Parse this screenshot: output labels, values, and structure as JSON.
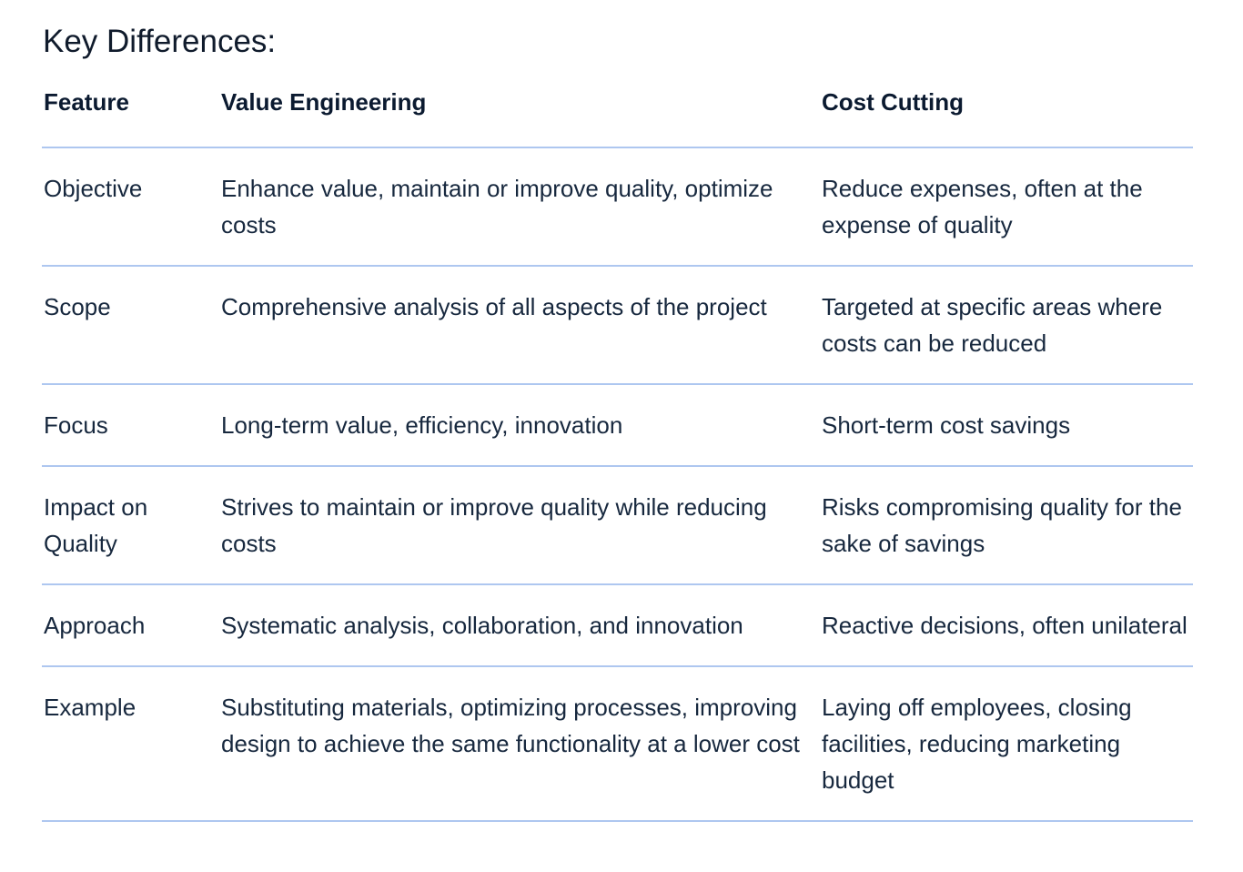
{
  "heading": "Key Differences:",
  "table": {
    "headers": [
      "Feature",
      "Value Engineering",
      "Cost Cutting"
    ],
    "rows": [
      [
        "Objective",
        "Enhance value, maintain or improve quality, optimize costs",
        "Reduce expenses, often at the expense of quality"
      ],
      [
        "Scope",
        "Comprehensive analysis of all aspects of the project",
        "Targeted at specific areas where costs can be reduced"
      ],
      [
        "Focus",
        "Long-term value, efficiency, innovation",
        "Short-term cost savings"
      ],
      [
        "Impact on Quality",
        "Strives to maintain or improve quality while reducing costs",
        "Risks compromising quality for the sake of savings"
      ],
      [
        "Approach",
        "Systematic analysis, collaboration, and innovation",
        "Reactive decisions, often unilateral"
      ],
      [
        "Example",
        "Substituting materials, optimizing processes, improving design to achieve the same functionality at a lower cost",
        "Laying off employees, closing facilities, reducing marketing budget"
      ]
    ]
  },
  "colors": {
    "text": "#0f1f35",
    "divider": "#aec7f0",
    "background": "#ffffff"
  }
}
